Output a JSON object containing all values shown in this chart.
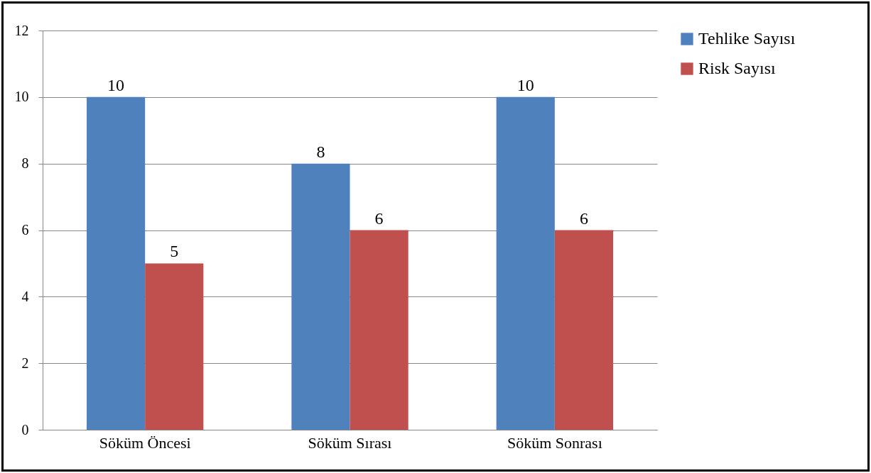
{
  "chart_data": {
    "type": "bar",
    "categories": [
      "Söküm Öncesi",
      "Söküm Sırası",
      "Söküm Sonrası"
    ],
    "series": [
      {
        "name": "Tehlike Sayısı",
        "color": "#4f81bd",
        "values": [
          10,
          8,
          10
        ]
      },
      {
        "name": "Risk Sayısı",
        "color": "#c0504d",
        "values": [
          5,
          6,
          6
        ]
      }
    ],
    "ylim": [
      0,
      12
    ],
    "yticks": [
      0,
      2,
      4,
      6,
      8,
      10,
      12
    ],
    "grid": "y",
    "legend": "right",
    "data_labels": true
  }
}
